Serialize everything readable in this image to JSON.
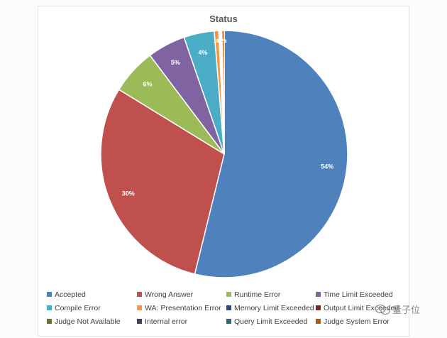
{
  "chart_data": {
    "type": "pie",
    "title": "Status",
    "slices": [
      {
        "label": "Accepted",
        "value": 54,
        "data_label": "54%",
        "color": "#4F81BD"
      },
      {
        "label": "Wrong Answer",
        "value": 30,
        "data_label": "30%",
        "color": "#C0504D"
      },
      {
        "label": "Runtime Error",
        "value": 6,
        "data_label": "6%",
        "color": "#9BBB59"
      },
      {
        "label": "Time Limit Exceeded",
        "value": 5,
        "data_label": "5%",
        "color": "#8064A2"
      },
      {
        "label": "Compile Error",
        "value": 4,
        "data_label": "4%",
        "color": "#4BACC6"
      },
      {
        "label": "WA: Presentation Error",
        "value": 0.6,
        "data_label": "1%",
        "color": "#F79646"
      },
      {
        "label": "Memory Limit Exceeded",
        "value": 0.15,
        "data_label": "0%",
        "color": "#2C4D75"
      },
      {
        "label": "Output Limit Exceeded",
        "value": 0.1,
        "data_label": "0%",
        "color": "#772C2A"
      },
      {
        "label": "Judge Not Available",
        "value": 0.05,
        "data_label": "0%",
        "color": "#5F7530"
      },
      {
        "label": "Internal error",
        "value": 0.05,
        "data_label": "0%",
        "color": "#4D3B62"
      },
      {
        "label": "Query Limit Exceeded",
        "value": 0.05,
        "data_label": "0%",
        "color": "#276A7C"
      },
      {
        "label": "Judge System Error",
        "value": 0.3,
        "data_label": "0%",
        "color": "#B65708"
      }
    ],
    "legend_position": "bottom",
    "show_small_labels": false
  },
  "watermark": {
    "text": "量子位"
  }
}
